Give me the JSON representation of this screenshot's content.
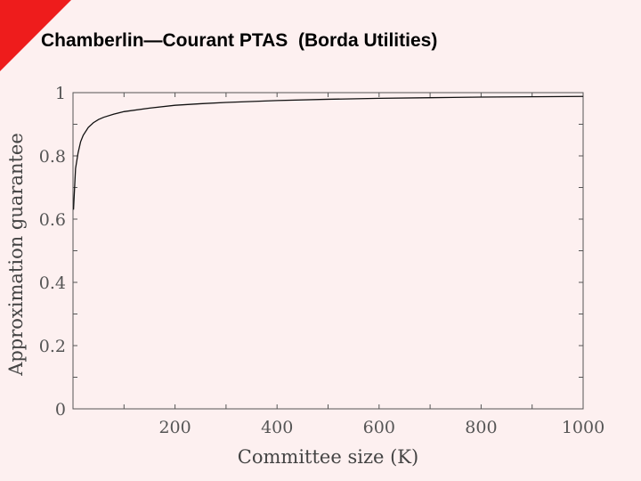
{
  "slide": {
    "title": "Chamberlin—Courant PTAS  (Borda Utilities)"
  },
  "colors": {
    "background": "#fdf0f0",
    "corner_accent": "#ee1c1c",
    "line": "#111111",
    "axis": "#555555"
  },
  "chart_data": {
    "type": "line",
    "title": "",
    "xlabel": "Committee size (K)",
    "ylabel": "Approximation guarantee",
    "xlim": [
      0,
      1000
    ],
    "ylim": [
      0,
      1
    ],
    "xticks": [
      200,
      400,
      600,
      800,
      1000
    ],
    "yticks": [
      0,
      0.2,
      0.4,
      0.6,
      0.8,
      1
    ],
    "ytick_labels": [
      "0",
      "0.2",
      "0.4",
      "0.6",
      "0.8",
      "1"
    ],
    "grid": false,
    "series": [
      {
        "x": [
          1,
          5,
          10,
          15,
          20,
          30,
          40,
          50,
          60,
          80,
          100,
          150,
          200,
          250,
          300,
          400,
          500,
          600,
          700,
          800,
          900,
          1000
        ],
        "y": [
          0.63,
          0.76,
          0.81,
          0.845,
          0.865,
          0.89,
          0.905,
          0.915,
          0.922,
          0.932,
          0.94,
          0.951,
          0.96,
          0.965,
          0.969,
          0.975,
          0.979,
          0.982,
          0.984,
          0.986,
          0.987,
          0.988
        ]
      }
    ]
  }
}
